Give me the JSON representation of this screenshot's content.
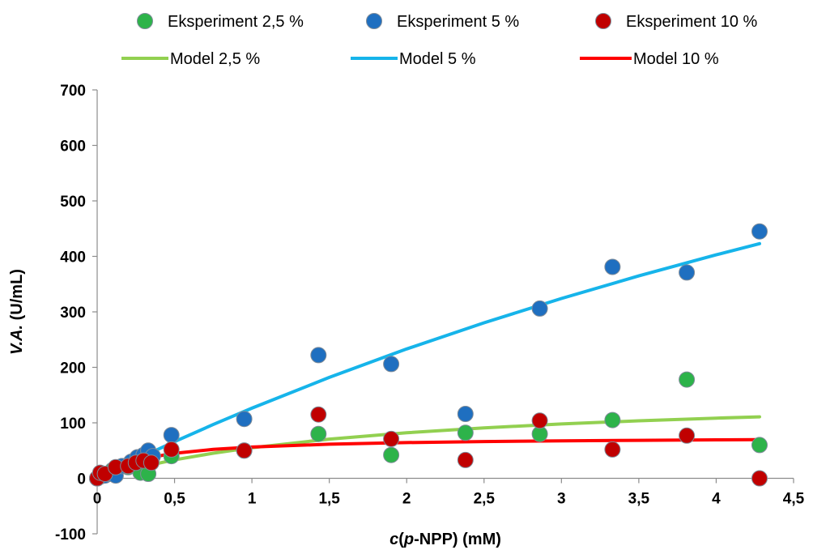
{
  "chart_data": {
    "type": "scatter",
    "xlabel": {
      "italic": "c",
      "open": "(",
      "italic2": "p",
      "rest": "-NPP) (mM)"
    },
    "ylabel": {
      "italic": "V.A.",
      "rest": " (U/mL)"
    },
    "xlim": [
      0,
      4.5
    ],
    "ylim": [
      -100,
      700
    ],
    "x_ticks": [
      0,
      0.5,
      1,
      1.5,
      2,
      2.5,
      3,
      3.5,
      4,
      4.5
    ],
    "x_tick_labels": [
      "0",
      "0,5",
      "1",
      "1,5",
      "2",
      "2,5",
      "3",
      "3,5",
      "4",
      "4,5"
    ],
    "y_ticks": [
      -100,
      0,
      100,
      200,
      300,
      400,
      500,
      600,
      700
    ],
    "y_tick_labels": [
      "-100",
      "0",
      "100",
      "200",
      "300",
      "400",
      "500",
      "600",
      "700"
    ],
    "grid": false,
    "legend_position": "top",
    "series": [
      {
        "name": "Eksperiment 2,5 %",
        "kind": "scatter",
        "color": "#2db34a",
        "points": [
          [
            0,
            0
          ],
          [
            0.05,
            8
          ],
          [
            0.1,
            15
          ],
          [
            0.2,
            20
          ],
          [
            0.25,
            22
          ],
          [
            0.28,
            10
          ],
          [
            0.33,
            8
          ],
          [
            0.35,
            30
          ],
          [
            0.48,
            40
          ],
          [
            0.95,
            50
          ],
          [
            1.43,
            80
          ],
          [
            1.9,
            42
          ],
          [
            2.38,
            82
          ],
          [
            2.86,
            80
          ],
          [
            3.33,
            105
          ],
          [
            3.81,
            178
          ],
          [
            4.28,
            60
          ]
        ]
      },
      {
        "name": "Eksperiment 5 %",
        "kind": "scatter",
        "color": "#1f6fc0",
        "points": [
          [
            0,
            0
          ],
          [
            0.02,
            3
          ],
          [
            0.05,
            5
          ],
          [
            0.08,
            8
          ],
          [
            0.12,
            5
          ],
          [
            0.16,
            22
          ],
          [
            0.22,
            30
          ],
          [
            0.26,
            38
          ],
          [
            0.3,
            42
          ],
          [
            0.33,
            50
          ],
          [
            0.36,
            40
          ],
          [
            0.48,
            78
          ],
          [
            0.95,
            107
          ],
          [
            1.43,
            222
          ],
          [
            1.9,
            206
          ],
          [
            2.38,
            116
          ],
          [
            2.86,
            306
          ],
          [
            3.33,
            381
          ],
          [
            3.81,
            371
          ],
          [
            4.28,
            445
          ]
        ]
      },
      {
        "name": "Eksperiment 10 %",
        "kind": "scatter",
        "color": "#c00000",
        "points": [
          [
            0,
            0
          ],
          [
            0.02,
            10
          ],
          [
            0.05,
            8
          ],
          [
            0.12,
            20
          ],
          [
            0.2,
            22
          ],
          [
            0.25,
            28
          ],
          [
            0.3,
            32
          ],
          [
            0.35,
            28
          ],
          [
            0.48,
            52
          ],
          [
            0.95,
            50
          ],
          [
            1.43,
            115
          ],
          [
            1.9,
            71
          ],
          [
            2.38,
            33
          ],
          [
            2.86,
            104
          ],
          [
            3.33,
            52
          ],
          [
            3.81,
            77
          ],
          [
            4.28,
            0
          ]
        ]
      },
      {
        "name": "Model 2,5 %",
        "kind": "line",
        "color": "#92d050",
        "vmax": 160,
        "km": 1.9,
        "x": [
          0,
          0.1,
          0.25,
          0.5,
          0.75,
          1,
          1.5,
          2,
          2.5,
          3,
          3.5,
          4,
          4.28
        ]
      },
      {
        "name": "Model 5 %",
        "kind": "line",
        "color": "#16b4ea",
        "vmax": 1480,
        "km": 10.7,
        "x": [
          0,
          0.1,
          0.25,
          0.5,
          0.75,
          1,
          1.5,
          2,
          2.5,
          3,
          3.5,
          4,
          4.28
        ]
      },
      {
        "name": "Model 10 %",
        "kind": "line",
        "color": "#ff0000",
        "vmax": 75,
        "km": 0.33,
        "x": [
          0,
          0.05,
          0.1,
          0.2,
          0.3,
          0.5,
          0.75,
          1,
          1.5,
          2,
          2.5,
          3,
          3.5,
          4,
          4.28
        ]
      }
    ]
  }
}
